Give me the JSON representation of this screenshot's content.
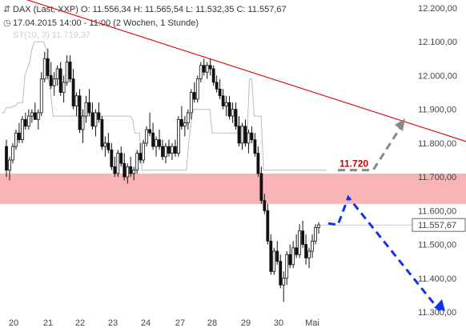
{
  "header": {
    "icon": "candlestick-icon",
    "line1": "DAX (Last, XXP)  O: 11.556,34  H: 11.565,54  L: 11.532,35  C: 11.557,67",
    "line2_icon": "clock-icon",
    "line2": "17.04.2015 14:00 - 11:00 (2 Wochen, 1 Stunde)",
    "line3": "ST(10, 3)  11.719,37"
  },
  "colors": {
    "candle": "#111111",
    "resistance_zone": "#f9b5b5",
    "trendline": "#dd1111",
    "stop_line": "#bbbbbb",
    "up_arrow": "#888888",
    "down_arrow": "#1133ee",
    "level_label": "#cc0000",
    "last_price_box": "#666666"
  },
  "annotation": {
    "level_label": "11.720"
  },
  "last_price_label": "11.557,67",
  "chart_data": {
    "type": "candlestick",
    "ylim": [
      11270,
      12240
    ],
    "y_ticks": [
      "12.200,00",
      "12.100,00",
      "12.000,00",
      "11.900,00",
      "11.800,00",
      "11.700,00",
      "11.600,00",
      "11.500,00",
      "11.400,00",
      "11.300,00"
    ],
    "x_ticks": [
      "20",
      "21",
      "22",
      "23",
      "24",
      "27",
      "28",
      "29",
      "30",
      "Mai"
    ],
    "last_price": 11557.67,
    "zone": [
      11620,
      11710
    ],
    "trendline": {
      "from": 12250,
      "to": 11805
    },
    "up_scenario": [
      11720,
      11720,
      11865
    ],
    "down_scenario": [
      11640,
      11290
    ],
    "supertrend": [
      11890,
      11890,
      11905,
      11905,
      11905,
      11910,
      11910,
      11920,
      11920,
      11920,
      12000,
      12020,
      12040,
      12080,
      12100,
      12100,
      12100,
      12100,
      12100,
      12080,
      11990,
      11950,
      11880,
      11880,
      11880,
      11880,
      11880,
      11880,
      11880,
      11880,
      11880,
      11880,
      11880,
      11880,
      11880,
      11880,
      11880,
      11880,
      11880,
      11880,
      11880,
      11880,
      11880,
      11880,
      11880,
      11880,
      11880,
      11880,
      11880,
      11880,
      11880,
      11880,
      11880,
      11880,
      11880,
      11880,
      11870,
      11830,
      11830,
      11830,
      11720,
      11720,
      11720,
      11720,
      11720,
      11720,
      11720,
      11720,
      11720,
      11720,
      11720,
      11720,
      11720,
      11720,
      11720,
      11720,
      11720,
      11720,
      11720,
      11720,
      11800,
      11860,
      11900,
      11900,
      11900,
      11900,
      11900,
      11900,
      11900,
      11900,
      11830,
      11830,
      11830,
      11830,
      11830,
      11830,
      11830,
      11830,
      11830,
      11830,
      11830,
      11830,
      11830,
      11830,
      11830,
      11830,
      11990,
      11990,
      11880,
      11880,
      11880,
      11880,
      11720,
      11720,
      11720,
      11720,
      11720,
      11720,
      11720,
      11720,
      11720,
      11720,
      11720,
      11720,
      11720,
      11720,
      11720,
      11720,
      11720,
      11720,
      11720,
      11720,
      11720,
      11720,
      11720,
      11720,
      11720,
      11720,
      11720,
      11720
    ],
    "candles": [
      [
        11790,
        11810,
        11700,
        11720
      ],
      [
        11720,
        11760,
        11690,
        11750
      ],
      [
        11750,
        11800,
        11740,
        11790
      ],
      [
        11790,
        11840,
        11780,
        11830
      ],
      [
        11830,
        11860,
        11800,
        11810
      ],
      [
        11810,
        11880,
        11800,
        11870
      ],
      [
        11870,
        11890,
        11840,
        11850
      ],
      [
        11850,
        11900,
        11840,
        11880
      ],
      [
        11880,
        11900,
        11860,
        11890
      ],
      [
        11890,
        11920,
        11870,
        11870
      ],
      [
        11870,
        11900,
        11840,
        11890
      ],
      [
        11890,
        12010,
        11880,
        11990
      ],
      [
        11990,
        12070,
        11980,
        12050
      ],
      [
        12050,
        12080,
        11990,
        12000
      ],
      [
        12000,
        12040,
        11960,
        11970
      ],
      [
        11970,
        12010,
        11940,
        11990
      ],
      [
        11990,
        12030,
        11970,
        12020
      ],
      [
        12020,
        12040,
        11940,
        11950
      ],
      [
        11950,
        12000,
        11920,
        11980
      ],
      [
        11980,
        12060,
        11970,
        12040
      ],
      [
        12040,
        12060,
        11980,
        11990
      ],
      [
        11990,
        12020,
        11900,
        11910
      ],
      [
        11910,
        11950,
        11880,
        11940
      ],
      [
        11940,
        11960,
        11830,
        11840
      ],
      [
        11840,
        11900,
        11800,
        11880
      ],
      [
        11880,
        11940,
        11860,
        11920
      ],
      [
        11920,
        11960,
        11880,
        11890
      ],
      [
        11890,
        11920,
        11840,
        11850
      ],
      [
        11850,
        11900,
        11820,
        11890
      ],
      [
        11890,
        11920,
        11860,
        11870
      ],
      [
        11870,
        11880,
        11780,
        11790
      ],
      [
        11790,
        11820,
        11760,
        11800
      ],
      [
        11800,
        11830,
        11770,
        11780
      ],
      [
        11780,
        11800,
        11720,
        11730
      ],
      [
        11730,
        11760,
        11700,
        11710
      ],
      [
        11710,
        11780,
        11700,
        11770
      ],
      [
        11770,
        11790,
        11730,
        11740
      ],
      [
        11740,
        11770,
        11690,
        11700
      ],
      [
        11700,
        11740,
        11680,
        11730
      ],
      [
        11730,
        11760,
        11700,
        11710
      ],
      [
        11710,
        11730,
        11690,
        11720
      ],
      [
        11720,
        11780,
        11710,
        11770
      ],
      [
        11770,
        11800,
        11740,
        11750
      ],
      [
        11750,
        11810,
        11740,
        11800
      ],
      [
        11800,
        11850,
        11790,
        11840
      ],
      [
        11840,
        11890,
        11820,
        11830
      ],
      [
        11830,
        11860,
        11780,
        11790
      ],
      [
        11790,
        11820,
        11760,
        11810
      ],
      [
        11810,
        11840,
        11780,
        11790
      ],
      [
        11790,
        11810,
        11750,
        11760
      ],
      [
        11760,
        11800,
        11740,
        11790
      ],
      [
        11790,
        11810,
        11760,
        11770
      ],
      [
        11770,
        11800,
        11750,
        11790
      ],
      [
        11790,
        11810,
        11760,
        11770
      ],
      [
        11770,
        11880,
        11760,
        11870
      ],
      [
        11870,
        11910,
        11840,
        11850
      ],
      [
        11850,
        11880,
        11820,
        11860
      ],
      [
        11860,
        11900,
        11840,
        11890
      ],
      [
        11890,
        11960,
        11870,
        11950
      ],
      [
        11950,
        11980,
        11920,
        11930
      ],
      [
        11930,
        12000,
        11920,
        11990
      ],
      [
        11990,
        12040,
        11980,
        12030
      ],
      [
        12030,
        12050,
        12000,
        12010
      ],
      [
        12010,
        12040,
        11990,
        12030
      ],
      [
        12030,
        12050,
        12000,
        12020
      ],
      [
        12020,
        12030,
        11970,
        11980
      ],
      [
        11980,
        12000,
        11950,
        11960
      ],
      [
        11960,
        11990,
        11930,
        11940
      ],
      [
        11940,
        11960,
        11900,
        11910
      ],
      [
        11910,
        11940,
        11880,
        11920
      ],
      [
        11920,
        11940,
        11870,
        11880
      ],
      [
        11880,
        11920,
        11860,
        11900
      ],
      [
        11900,
        11920,
        11840,
        11850
      ],
      [
        11850,
        11880,
        11790,
        11800
      ],
      [
        11800,
        11860,
        11780,
        11850
      ],
      [
        11850,
        11870,
        11790,
        11800
      ],
      [
        11800,
        11840,
        11770,
        11830
      ],
      [
        11830,
        11850,
        11800,
        11810
      ],
      [
        11810,
        11830,
        11760,
        11770
      ],
      [
        11770,
        11790,
        11700,
        11710
      ],
      [
        11710,
        11730,
        11620,
        11630
      ],
      [
        11630,
        11650,
        11590,
        11600
      ],
      [
        11600,
        11620,
        11500,
        11510
      ],
      [
        11510,
        11530,
        11410,
        11420
      ],
      [
        11420,
        11490,
        11410,
        11480
      ],
      [
        11480,
        11510,
        11440,
        11450
      ],
      [
        11450,
        11470,
        11370,
        11380
      ],
      [
        11380,
        11420,
        11330,
        11400
      ],
      [
        11400,
        11480,
        11380,
        11470
      ],
      [
        11470,
        11500,
        11430,
        11440
      ],
      [
        11440,
        11510,
        11430,
        11490
      ],
      [
        11490,
        11530,
        11460,
        11470
      ],
      [
        11470,
        11560,
        11460,
        11540
      ],
      [
        11540,
        11570,
        11490,
        11500
      ],
      [
        11500,
        11530,
        11440,
        11460
      ],
      [
        11460,
        11490,
        11430,
        11480
      ],
      [
        11480,
        11530,
        11460,
        11510
      ],
      [
        11510,
        11560,
        11500,
        11550
      ],
      [
        11550,
        11566,
        11532,
        11558
      ]
    ]
  }
}
